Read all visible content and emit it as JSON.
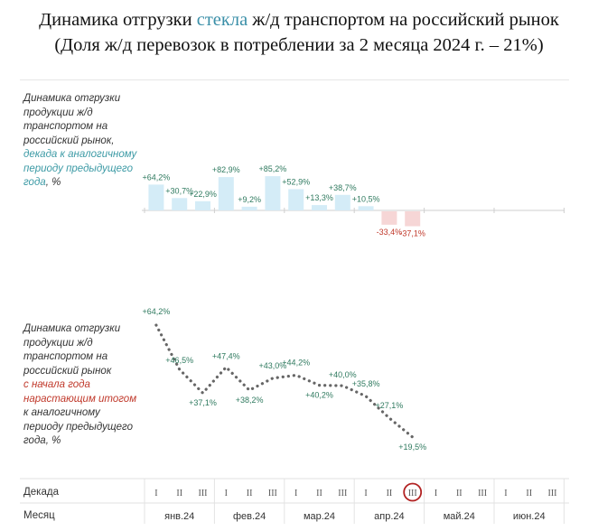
{
  "title": {
    "line1_pre": "Динамика отгрузки ",
    "line1_accent": "стекла",
    "line1_post": " ж/д транспортом на российский рынок",
    "line2": "(Доля ж/д перевозок в потреблении за 2 месяца 2024 г. – 21%)"
  },
  "notes": {
    "top": [
      "Динамика отгрузки",
      "продукции ж/д",
      "транспортом на",
      "российский рынок,"
    ],
    "top_teal": [
      "декада к аналогичному",
      "периоду предыдущего"
    ],
    "top_tail_teal": "года",
    "top_tail": ", %",
    "bottom": [
      "Динамика отгрузки",
      "продукции ж/д",
      "транспортом на",
      "российский рынок"
    ],
    "bottom_red": [
      "с начала года",
      "нарастающим итогом"
    ],
    "bottom_tail": [
      "к аналогичному",
      "периоду предыдущего",
      "года, %"
    ]
  },
  "axis": {
    "decade_label": "Декада",
    "month_label": "Месяц",
    "decade_ticks": [
      "I",
      "II",
      "III"
    ],
    "months": [
      "янв.24",
      "фев.24",
      "мар.24",
      "апр.24",
      "май.24",
      "июн.24"
    ]
  },
  "colors": {
    "positive_bar": "#d4ecf7",
    "negative_bar": "#f6d6d6",
    "positive_text": "#2f7a5f",
    "negative_text": "#c0392b",
    "line": "#666666",
    "highlight": "#b22222"
  },
  "chart_data": [
    {
      "type": "bar",
      "categories": [
        "янв I",
        "янв II",
        "янв III",
        "фев I",
        "фев II",
        "фев III",
        "мар I",
        "мар II",
        "мар III",
        "апр I",
        "апр II",
        "апр III"
      ],
      "values": [
        64.2,
        30.7,
        22.9,
        82.9,
        9.2,
        85.2,
        52.9,
        13.3,
        38.7,
        10.5,
        -33.4,
        -37.1
      ],
      "labels": [
        "+64,2%",
        "+30,7%",
        "+22,9%",
        "+82,9%",
        "+9,2%",
        "+85,2%",
        "+52,9%",
        "+13,3%",
        "+38,7%",
        "+10,5%",
        "-33,4%",
        "-37,1%"
      ]
    },
    {
      "type": "line",
      "categories": [
        "янв I",
        "янв II",
        "янв III",
        "фев I",
        "фев II",
        "фев III",
        "мар I",
        "мар II",
        "мар III",
        "апр I",
        "апр II",
        "апр III"
      ],
      "values": [
        64.2,
        46.5,
        37.1,
        47.4,
        38.2,
        43.0,
        44.2,
        40.2,
        40.0,
        35.8,
        27.1,
        19.5
      ],
      "labels": [
        "+64,2%",
        "+46,5%",
        "+37,1%",
        "+47,4%",
        "+38,2%",
        "+43,0%",
        "+44,2%",
        "+40,2%",
        "+40,0%",
        "+35,8%",
        "+27,1%",
        "+19,5%"
      ],
      "highlight_category": "апр III"
    }
  ]
}
